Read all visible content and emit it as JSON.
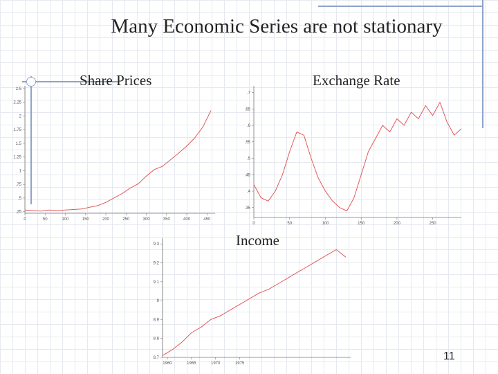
{
  "slide": {
    "title": "Many Economic Series are not stationary",
    "page_number": "11"
  },
  "chart_data": [
    {
      "type": "line",
      "title": "Share Prices",
      "color": "#e05a5a",
      "xlim": [
        0,
        470
      ],
      "ylim": [
        0.22,
        2.55
      ],
      "xticks": [
        0,
        50,
        100,
        150,
        200,
        250,
        300,
        350,
        400,
        450
      ],
      "yticks": [
        0.25,
        0.5,
        0.75,
        1.0,
        1.25,
        1.5,
        1.75,
        2.0,
        2.25,
        2.5
      ],
      "ytick_labels": [
        ".25",
        ".5",
        ".75",
        "1",
        "1.25",
        "1.5",
        "1.75",
        "2",
        "2.25",
        "2.5"
      ],
      "series": [
        {
          "x": [
            0,
            20,
            40,
            60,
            80,
            100,
            120,
            140,
            160,
            180,
            200,
            220,
            240,
            260,
            280,
            300,
            320,
            340,
            360,
            380,
            400,
            420,
            440,
            460
          ],
          "values": [
            0.28,
            0.27,
            0.26,
            0.28,
            0.27,
            0.28,
            0.29,
            0.3,
            0.33,
            0.36,
            0.42,
            0.5,
            0.58,
            0.68,
            0.76,
            0.9,
            1.02,
            1.08,
            1.2,
            1.32,
            1.45,
            1.6,
            1.8,
            2.1
          ]
        }
      ]
    },
    {
      "type": "line",
      "title": "Exchange Rate",
      "color": "#e05a5a",
      "xlim": [
        0,
        290
      ],
      "ylim": [
        0.32,
        0.72
      ],
      "xticks": [
        0,
        50,
        100,
        150,
        200,
        250
      ],
      "yticks": [
        0.35,
        0.4,
        0.45,
        0.5,
        0.55,
        0.6,
        0.65,
        0.7
      ],
      "ytick_labels": [
        ".35",
        ".4",
        ".45",
        ".5",
        ".55",
        ".6",
        ".65",
        ".7"
      ],
      "series": [
        {
          "x": [
            0,
            10,
            20,
            30,
            40,
            50,
            60,
            70,
            80,
            90,
            100,
            110,
            120,
            130,
            140,
            150,
            160,
            170,
            180,
            190,
            200,
            210,
            220,
            230,
            240,
            250,
            260,
            270,
            280,
            290
          ],
          "values": [
            0.42,
            0.38,
            0.37,
            0.4,
            0.45,
            0.52,
            0.58,
            0.57,
            0.5,
            0.44,
            0.4,
            0.37,
            0.35,
            0.34,
            0.38,
            0.45,
            0.52,
            0.56,
            0.6,
            0.58,
            0.62,
            0.6,
            0.64,
            0.62,
            0.66,
            0.63,
            0.67,
            0.61,
            0.57,
            0.59
          ]
        }
      ]
    },
    {
      "type": "line",
      "title": "Income",
      "color": "#e05a5a",
      "xlim": [
        1959,
        1998
      ],
      "ylim": [
        8.7,
        9.33
      ],
      "xticks": [
        1960,
        1965,
        1970,
        1975
      ],
      "yticks": [
        8.7,
        8.8,
        8.9,
        9.0,
        9.1,
        9.2,
        9.3
      ],
      "ytick_labels": [
        "8.7",
        "8.8",
        "8.9",
        "9",
        "9.1",
        "9.2",
        "9.3"
      ],
      "series": [
        {
          "x": [
            1959,
            1961,
            1963,
            1965,
            1967,
            1969,
            1971,
            1973,
            1975,
            1977,
            1979,
            1981,
            1983,
            1985,
            1987,
            1989,
            1991,
            1993,
            1995,
            1997
          ],
          "values": [
            8.71,
            8.74,
            8.78,
            8.83,
            8.86,
            8.9,
            8.92,
            8.95,
            8.98,
            9.01,
            9.04,
            9.06,
            9.09,
            9.12,
            9.15,
            9.18,
            9.21,
            9.24,
            9.27,
            9.23
          ]
        }
      ]
    }
  ]
}
